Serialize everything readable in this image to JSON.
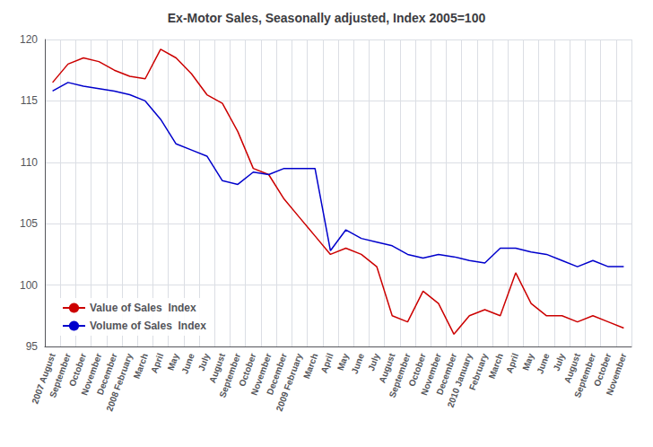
{
  "chart_data": {
    "type": "line",
    "title": "Ex-Motor Sales, Seasonally adjusted, Index 2005=100",
    "categories": [
      "2007 August",
      "September",
      "October",
      "November",
      "December",
      "2008 February",
      "March",
      "April",
      "May",
      "June",
      "July",
      "August",
      "September",
      "October",
      "November",
      "December",
      "2009 February",
      "March",
      "April",
      "May",
      "June",
      "July",
      "August",
      "September",
      "October",
      "November",
      "December",
      "2010 January",
      "February",
      "March",
      "April",
      "May",
      "June",
      "July",
      "August",
      "September",
      "October",
      "November"
    ],
    "series": [
      {
        "name": "Value of Sales  Index",
        "color": "#cc0000",
        "values": [
          116.5,
          118.0,
          118.5,
          118.2,
          117.5,
          117.0,
          116.8,
          119.2,
          118.5,
          117.2,
          115.5,
          114.8,
          112.5,
          109.5,
          109.0,
          107.0,
          105.5,
          104.0,
          102.5,
          103.0,
          102.5,
          101.5,
          97.5,
          97.0,
          99.5,
          98.5,
          96.0,
          97.5,
          98.0,
          97.5,
          101.0,
          98.5,
          97.5,
          97.5,
          97.0,
          97.5,
          97.0,
          96.5
        ]
      },
      {
        "name": "Volume of Sales  Index",
        "color": "#0000cc",
        "values": [
          115.8,
          116.5,
          116.2,
          116.0,
          115.8,
          115.5,
          115.0,
          113.5,
          111.5,
          111.0,
          110.5,
          108.5,
          108.2,
          109.2,
          109.0,
          109.5,
          109.5,
          109.5,
          102.8,
          104.5,
          103.8,
          103.5,
          103.2,
          102.5,
          102.2,
          102.5,
          102.3,
          102.0,
          101.8,
          103.0,
          103.0,
          102.7,
          102.5,
          102.0,
          101.5,
          102.0,
          101.5,
          101.5
        ]
      }
    ],
    "ylim": [
      95,
      120
    ],
    "yticks": [
      95,
      100,
      105,
      110,
      115,
      120
    ],
    "grid": true,
    "legend": "lower left"
  }
}
